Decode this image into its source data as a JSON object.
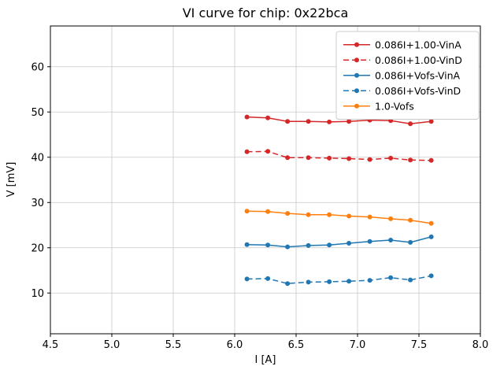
{
  "figure": {
    "background": "#ffffff"
  },
  "chart_data": {
    "type": "line",
    "title": "VI curve for chip: 0x22bca",
    "xlabel": "I [A]",
    "ylabel": "V [mV]",
    "xlim": [
      4.5,
      8.0
    ],
    "ylim": [
      1,
      69
    ],
    "xticks": [
      4.5,
      5.0,
      5.5,
      6.0,
      6.5,
      7.0,
      7.5,
      8.0
    ],
    "yticks": [
      10,
      20,
      30,
      40,
      50,
      60
    ],
    "grid": true,
    "grid_color": "#c8c8c8",
    "legend_position": "upper right",
    "x": [
      6.1,
      6.27,
      6.43,
      6.6,
      6.77,
      6.93,
      7.1,
      7.27,
      7.43,
      7.6
    ],
    "series": [
      {
        "name": "0.086I+1.00-VinA",
        "color": "#d62728",
        "linestyle": "solid",
        "marker": "circle",
        "values": [
          48.9,
          48.7,
          47.9,
          47.9,
          47.8,
          47.9,
          48.2,
          48.1,
          47.4,
          47.9
        ]
      },
      {
        "name": "0.086I+1.00-VinD",
        "color": "#d62728",
        "linestyle": "dashed",
        "marker": "circle",
        "values": [
          41.2,
          41.3,
          39.9,
          39.9,
          39.8,
          39.7,
          39.5,
          39.8,
          39.4,
          39.3
        ]
      },
      {
        "name": "0.086I+Vofs-VinA",
        "color": "#1f77b4",
        "linestyle": "solid",
        "marker": "circle",
        "values": [
          20.7,
          20.6,
          20.2,
          20.5,
          20.6,
          21.0,
          21.4,
          21.7,
          21.2,
          22.4
        ]
      },
      {
        "name": "0.086I+Vofs-VinD",
        "color": "#1f77b4",
        "linestyle": "dashed",
        "marker": "circle",
        "values": [
          13.1,
          13.2,
          12.1,
          12.4,
          12.5,
          12.6,
          12.8,
          13.4,
          12.9,
          13.8
        ]
      },
      {
        "name": "1.0-Vofs",
        "color": "#ff7f0e",
        "linestyle": "solid",
        "marker": "circle",
        "values": [
          28.1,
          28.0,
          27.6,
          27.3,
          27.3,
          27.0,
          26.8,
          26.4,
          26.1,
          25.4
        ]
      }
    ]
  }
}
